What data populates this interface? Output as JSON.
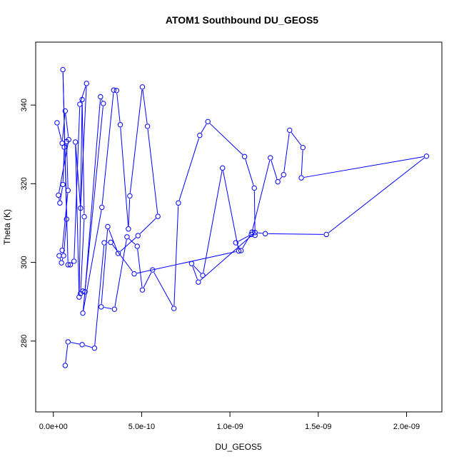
{
  "chart_data": {
    "type": "line",
    "title": "ATOM1 Southbound DU_GEOS5",
    "xlabel": "DU_GEOS5",
    "ylabel": "Theta (K)",
    "xlim": [
      -1e-10,
      2.2e-09
    ],
    "ylim": [
      262,
      356
    ],
    "x_ticks": [
      {
        "value": 0,
        "label": "0.0e+00"
      },
      {
        "value": 5e-10,
        "label": "5.0e-10"
      },
      {
        "value": 1e-09,
        "label": "1.0e-09"
      },
      {
        "value": 1.5e-09,
        "label": "1.5e-09"
      },
      {
        "value": 2e-09,
        "label": "2.0e-09"
      }
    ],
    "y_ticks": [
      {
        "value": 280,
        "label": "280"
      },
      {
        "value": 300,
        "label": "300"
      },
      {
        "value": 320,
        "label": "320"
      },
      {
        "value": 340,
        "label": "340"
      }
    ],
    "grid": false,
    "legend": "none",
    "series": [
      {
        "color": "#0000ff",
        "marker": "open-circle",
        "x": [
          2.1e-11,
          5e-11,
          6.7e-11,
          8.7e-11,
          2.9e-11,
          3.7e-11,
          5.4e-11,
          6.2e-11,
          7.5e-11,
          8.3e-11,
          5e-11,
          3.3e-11,
          4.6e-11,
          5.8e-11,
          7.5e-11,
          5.4e-11,
          8.3e-11,
          9.6e-11,
          1.17e-10,
          1.5e-10,
          1.88e-10,
          1.54e-10,
          1.25e-10,
          1.46e-10,
          1.63e-10,
          1.75e-10,
          1.54e-10,
          1.67e-10,
          1.79e-10,
          2.67e-10,
          2.83e-10,
          1.67e-10,
          2.75e-10,
          3.42e-10,
          3.58e-10,
          3.79e-10,
          4.25e-10,
          4.33e-10,
          5.04e-10,
          5.33e-10,
          5.92e-10,
          4.79e-10,
          3.67e-10,
          3.08e-10,
          2.71e-10,
          3.46e-10,
          4.17e-10,
          4.75e-10,
          5.04e-10,
          5.62e-10,
          6.83e-10,
          7.08e-10,
          8.29e-10,
          8.75e-10,
          1.083e-09,
          1.138e-09,
          1.142e-09,
          1.125e-09,
          1.063e-09,
          1.033e-09,
          1.121e-09,
          1.229e-09,
          1.271e-09,
          1.304e-09,
          1.338e-09,
          1.413e-09,
          1.404e-09,
          2.113e-09,
          1.546e-09,
          1.2e-09,
          1.142e-09,
          8.21e-10,
          7.83e-10,
          8.46e-10,
          9.58e-10,
          1.05e-09,
          4.58e-10,
          3.25e-10,
          2.88e-10,
          2.33e-10,
          1.63e-10,
          8.3e-11,
          6.7e-11
        ]
      }
    ],
    "y_values_k": [
      335.5,
      330.3,
      338.5,
      331.2,
      317.1,
      315.1,
      319.8,
      329.3,
      330.7,
      318.3,
      303.1,
      301.7,
      299.9,
      301.7,
      311.0,
      349.0,
      299.4,
      299.4,
      300.3,
      340.2,
      345.5,
      313.8,
      330.6,
      291.2,
      341.4,
      311.6,
      292.1,
      292.7,
      292.5,
      342.1,
      340.4,
      287.1,
      314.0,
      343.8,
      343.7,
      335.0,
      308.5,
      316.9,
      344.6,
      334.6,
      311.7,
      306.8,
      302.3,
      309.1,
      288.7,
      288.1,
      306.5,
      304.1,
      293.0,
      298.1,
      288.3,
      315.1,
      332.3,
      335.8,
      326.9,
      318.9,
      306.9,
      307.7,
      303.0,
      305.0,
      307.1,
      326.6,
      320.5,
      322.3,
      333.6,
      329.2,
      321.5,
      327.0,
      307.1,
      307.3,
      307.6,
      295.0,
      299.7,
      296.7,
      324.0,
      302.9,
      297.1,
      305.1,
      305.0,
      278.2,
      279.1,
      279.8,
      273.8
    ]
  }
}
